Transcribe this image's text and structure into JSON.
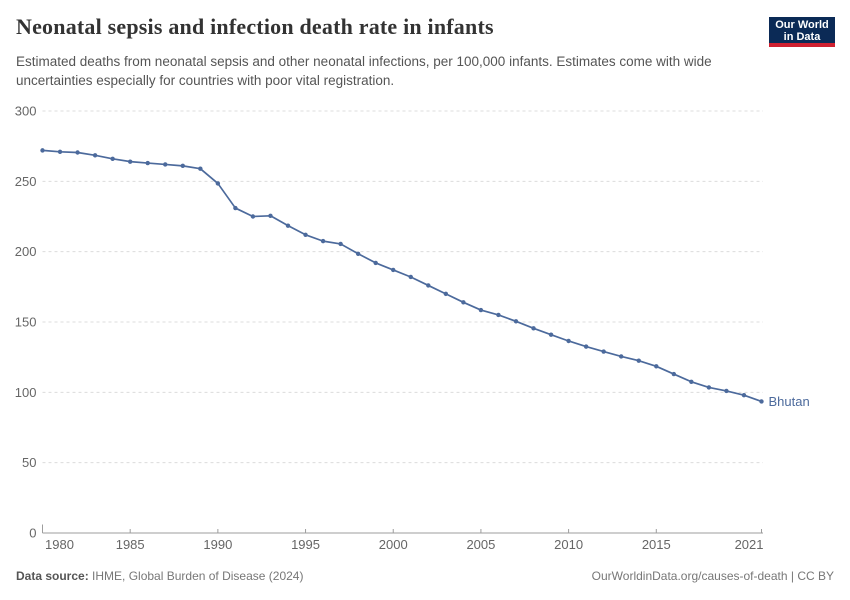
{
  "header": {
    "title": "Neonatal sepsis and infection death rate in infants",
    "subtitle": "Estimated deaths from neonatal sepsis and other neonatal infections, per 100,000 infants. Estimates come with wide uncertainties especially for countries with poor vital registration.",
    "logo": {
      "line1": "Our World",
      "line2": "in Data"
    }
  },
  "chart_data": {
    "type": "line",
    "title": "Neonatal sepsis and infection death rate in infants",
    "xlabel": "",
    "ylabel": "",
    "xlim": [
      1980,
      2021
    ],
    "ylim": [
      0,
      300
    ],
    "x_ticks": [
      1980,
      1985,
      1990,
      1995,
      2000,
      2005,
      2010,
      2015,
      2021
    ],
    "y_ticks": [
      0,
      50,
      100,
      150,
      200,
      250,
      300
    ],
    "grid": "horizontal-dashed",
    "legend_position": "end-of-line-label",
    "x": [
      1980,
      1981,
      1982,
      1983,
      1984,
      1985,
      1986,
      1987,
      1988,
      1989,
      1990,
      1991,
      1992,
      1993,
      1994,
      1995,
      1996,
      1997,
      1998,
      1999,
      2000,
      2001,
      2002,
      2003,
      2004,
      2005,
      2006,
      2007,
      2008,
      2009,
      2010,
      2011,
      2012,
      2013,
      2014,
      2015,
      2016,
      2017,
      2018,
      2019,
      2020,
      2021
    ],
    "series": [
      {
        "name": "Bhutan",
        "color": "#4C6A9C",
        "values": [
          272,
          271,
          270.5,
          268.5,
          266,
          264,
          263,
          262,
          261,
          259,
          248.5,
          231,
          225,
          225.5,
          218.5,
          212,
          207.5,
          205.5,
          198.5,
          192,
          187,
          182,
          176,
          170,
          164,
          158.5,
          155,
          150.5,
          145.5,
          141,
          136.5,
          132.5,
          129,
          125.5,
          122.5,
          118.5,
          113,
          107.5,
          103.5,
          101,
          98,
          93.5
        ]
      }
    ]
  },
  "footer": {
    "source_label": "Data source:",
    "source_value": " IHME, Global Burden of Disease (2024)",
    "rights": "OurWorldinData.org/causes-of-death | CC BY"
  },
  "colors": {
    "line": "#4C6A9C",
    "grid": "#dcdcdc",
    "axis": "#9d9d9d",
    "tick_label": "#666666",
    "title_text": "#333333",
    "subtitle_text": "#555555",
    "footer_text": "#777777",
    "logo_bg": "#0b2a56",
    "logo_accent": "#cf2030"
  }
}
